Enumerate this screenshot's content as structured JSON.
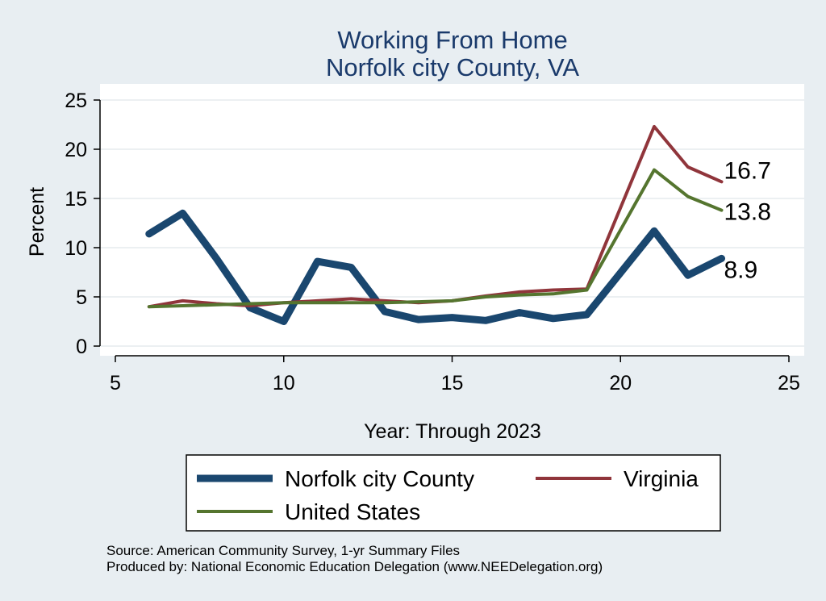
{
  "chart_data": {
    "type": "line",
    "title": "Working From Home",
    "subtitle": "Norfolk city County, VA",
    "xlabel": "Year: Through 2023",
    "ylabel": "Percent",
    "xlim": [
      5,
      25
    ],
    "ylim": [
      0,
      25
    ],
    "xticks": [
      5,
      10,
      15,
      20,
      25
    ],
    "yticks": [
      0,
      5,
      10,
      15,
      20,
      25
    ],
    "grid": true,
    "legend_position": "bottom",
    "series": [
      {
        "name": "Norfolk city County",
        "color": "#1a476f",
        "x": [
          6,
          7,
          8,
          9,
          10,
          11,
          12,
          13,
          14,
          15,
          16,
          17,
          18,
          19,
          21,
          22,
          23
        ],
        "values": [
          11.4,
          13.5,
          8.9,
          3.9,
          2.5,
          8.6,
          8.0,
          3.5,
          2.7,
          2.9,
          2.6,
          3.4,
          2.8,
          3.2,
          11.7,
          7.2,
          8.9
        ],
        "end_label": "8.9"
      },
      {
        "name": "Virginia",
        "color": "#90353b",
        "x": [
          6,
          7,
          8,
          9,
          10,
          11,
          12,
          13,
          14,
          15,
          16,
          17,
          18,
          19,
          21,
          22,
          23
        ],
        "values": [
          4.0,
          4.6,
          4.3,
          4.1,
          4.4,
          4.6,
          4.8,
          4.6,
          4.4,
          4.6,
          5.1,
          5.5,
          5.7,
          5.8,
          22.3,
          18.2,
          16.7
        ],
        "end_label": "16.7"
      },
      {
        "name": "United States",
        "color": "#55752f",
        "x": [
          6,
          7,
          8,
          9,
          10,
          11,
          12,
          13,
          14,
          15,
          16,
          17,
          18,
          19,
          21,
          22,
          23
        ],
        "values": [
          4.0,
          4.1,
          4.2,
          4.3,
          4.4,
          4.4,
          4.4,
          4.4,
          4.5,
          4.6,
          5.0,
          5.2,
          5.3,
          5.7,
          17.9,
          15.2,
          13.8
        ],
        "end_label": "13.8"
      }
    ]
  },
  "footer": {
    "source": "Source: American Community Survey, 1-yr Summary Files",
    "producer": "Produced by: National Economic Education Delegation (www.NEEDelegation.org)"
  }
}
